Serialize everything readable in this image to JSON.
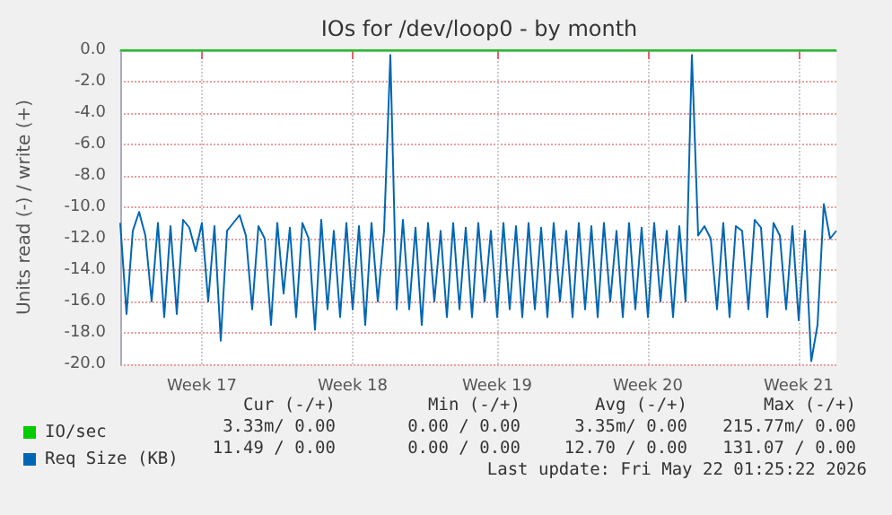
{
  "chart_data": {
    "type": "line",
    "title": "IOs for /dev/loop0 - by month",
    "ylabel": "Units read (-) / write (+)",
    "categories": [
      null,
      null,
      null,
      null,
      null,
      null,
      null,
      null,
      null,
      null,
      null,
      null,
      null,
      "Week 17",
      null,
      null,
      null,
      null,
      null,
      null,
      null,
      null,
      null,
      null,
      null,
      null,
      null,
      null,
      null,
      null,
      null,
      null,
      null,
      null,
      null,
      null,
      null,
      "Week 18",
      null,
      null,
      null,
      null,
      null,
      null,
      null,
      null,
      null,
      null,
      null,
      null,
      null,
      null,
      null,
      null,
      null,
      null,
      null,
      null,
      null,
      null,
      "Week 19",
      null,
      null,
      null,
      null,
      null,
      null,
      null,
      null,
      null,
      null,
      null,
      null,
      null,
      null,
      null,
      null,
      null,
      null,
      null,
      null,
      null,
      null,
      null,
      "Week 20",
      null,
      null,
      null,
      null,
      null,
      null,
      null,
      null,
      null,
      null,
      null,
      null,
      null,
      null,
      null,
      null,
      null,
      null,
      null,
      null,
      null,
      null,
      null,
      "Week 21",
      null,
      null,
      null,
      null,
      null,
      null
    ],
    "ylim": [
      -20,
      0
    ],
    "yticks": [
      {
        "value": -20,
        "label": "-20.0"
      },
      {
        "value": -18,
        "label": "-18.0"
      },
      {
        "value": -16,
        "label": "-16.0"
      },
      {
        "value": -14,
        "label": "-14.0"
      },
      {
        "value": -12,
        "label": "-12.0"
      },
      {
        "value": -10,
        "label": "-10.0"
      },
      {
        "value": -8,
        "label": "-8.0"
      },
      {
        "value": -6,
        "label": "-6.0"
      },
      {
        "value": -4,
        "label": "-4.0"
      },
      {
        "value": -2,
        "label": "-2.0"
      },
      {
        "value": 0,
        "label": "0.0"
      }
    ],
    "grid": true,
    "legend": "bottom left",
    "marker": "none",
    "line_style": "solid",
    "series": [
      {
        "name": "IO/sec",
        "color": "#00cc00",
        "values": [
          0,
          0,
          0,
          0,
          0,
          0,
          0,
          0,
          0,
          0,
          0,
          0,
          0,
          0,
          0,
          0,
          0,
          0,
          0,
          0,
          0,
          0,
          0,
          0,
          0,
          0,
          0,
          0,
          0,
          0,
          0,
          0,
          0,
          0,
          0,
          0,
          0,
          0,
          0,
          0,
          0,
          0,
          0,
          0,
          0,
          0,
          0,
          0,
          0,
          0,
          0,
          0,
          0,
          0,
          0,
          0,
          0,
          0,
          0,
          0,
          0,
          0,
          0,
          0,
          0,
          0,
          0,
          0,
          0,
          0,
          0,
          0,
          0,
          0,
          0,
          0,
          0,
          0,
          0,
          0,
          0,
          0,
          0,
          0,
          0,
          0,
          0,
          0,
          0,
          0,
          0,
          0,
          0,
          0,
          0,
          0,
          0,
          0,
          0,
          0,
          0,
          0,
          0,
          0,
          0,
          0,
          0,
          0,
          0,
          0,
          0,
          0,
          0,
          0,
          0
        ]
      },
      {
        "name": "Req Size (KB)",
        "color": "#0066b3",
        "values": [
          -11,
          -16.8,
          -11.5,
          -10.3,
          -11.8,
          -16,
          -11,
          -17,
          -11.2,
          -16.8,
          -10.8,
          -11.3,
          -12.8,
          -11,
          -16,
          -11.2,
          -18.5,
          -11.5,
          -11,
          -10.5,
          -11.8,
          -16.5,
          -11.2,
          -12,
          -17.5,
          -11,
          -15.5,
          -11.3,
          -17,
          -11,
          -12,
          -17.8,
          -10.8,
          -16.5,
          -11.5,
          -17,
          -11,
          -16.5,
          -11.2,
          -17.5,
          -11,
          -16,
          -11.5,
          -0.3,
          -16.5,
          -10.8,
          -16.5,
          -11.3,
          -17.5,
          -11,
          -16,
          -11.5,
          -17,
          -11,
          -16.5,
          -11.3,
          -17,
          -11,
          -16,
          -11.5,
          -17,
          -11,
          -16.5,
          -11.2,
          -17,
          -11,
          -16.5,
          -11.3,
          -17,
          -11,
          -16,
          -11.5,
          -17,
          -11,
          -16.5,
          -11.2,
          -17,
          -11,
          -16,
          -11.5,
          -17,
          -11,
          -16.5,
          -11.3,
          -17,
          -11,
          -16,
          -11.5,
          -17,
          -11.2,
          -16,
          -0.3,
          -11.8,
          -11.2,
          -12,
          -16.5,
          -11,
          -17,
          -11.2,
          -11.5,
          -16.5,
          -10.8,
          -11.3,
          -17,
          -11,
          -11.8,
          -16.5,
          -11.2,
          -17.2,
          -11.5,
          -19.8,
          -17.5,
          -9.8,
          -12,
          -11.5
        ]
      }
    ],
    "annotations": [
      "Cur (-/+)",
      "Min (-/+)",
      "Avg (-/+)",
      "Max (-/+)",
      "3.33m/ 0.00",
      "0.00 / 0.00",
      "3.35m/ 0.00",
      "215.77m/ 0.00",
      "11.49 / 0.00",
      "0.00 / 0.00",
      "12.70 / 0.00",
      "131.07 / 0.00",
      "Last update: Fri May 22 01:25:22 2026"
    ]
  }
}
